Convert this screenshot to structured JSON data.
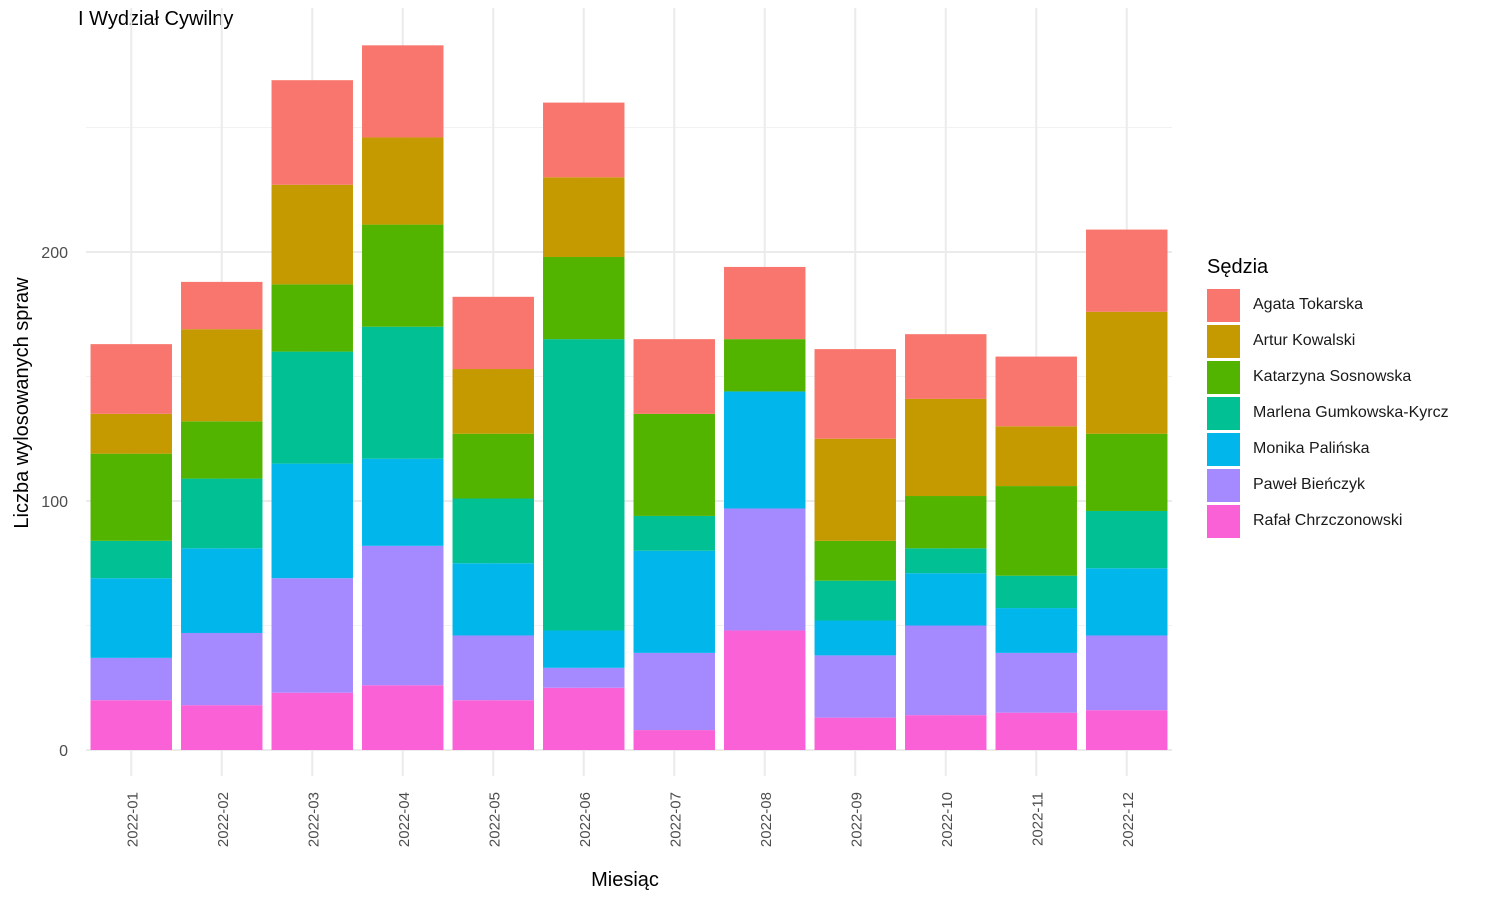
{
  "chart_data": {
    "type": "bar",
    "stacked": true,
    "title": "I Wydział Cywilny",
    "xlabel": "Miesiąc",
    "ylabel": "Liczba wylosowanych spraw",
    "ylim": [
      0,
      283
    ],
    "yticks": [
      0,
      100,
      200
    ],
    "grid": true,
    "legend_title": "Sędzia",
    "legend_position": "right",
    "categories": [
      "2022-01",
      "2022-02",
      "2022-03",
      "2022-04",
      "2022-05",
      "2022-06",
      "2022-07",
      "2022-08",
      "2022-09",
      "2022-10",
      "2022-11",
      "2022-12"
    ],
    "series": [
      {
        "name": "Agata Tokarska",
        "color": "#F8766D",
        "values": [
          28,
          19,
          42,
          37,
          29,
          30,
          30,
          29,
          36,
          26,
          28,
          33
        ]
      },
      {
        "name": "Artur Kowalski",
        "color": "#C49A00",
        "values": [
          16,
          37,
          40,
          35,
          26,
          32,
          0,
          0,
          41,
          39,
          24,
          49
        ]
      },
      {
        "name": "Katarzyna Sosnowska",
        "color": "#53B400",
        "values": [
          35,
          23,
          27,
          41,
          26,
          33,
          41,
          21,
          16,
          21,
          36,
          31
        ]
      },
      {
        "name": "Marlena Gumkowska-Kyrcz",
        "color": "#00C094",
        "values": [
          15,
          28,
          45,
          53,
          26,
          117,
          14,
          0,
          16,
          10,
          13,
          23
        ]
      },
      {
        "name": "Monika Palińska",
        "color": "#00B6EB",
        "values": [
          32,
          34,
          46,
          35,
          29,
          15,
          41,
          47,
          14,
          21,
          18,
          27
        ]
      },
      {
        "name": "Paweł Bieńczyk",
        "color": "#A58AFF",
        "values": [
          17,
          29,
          46,
          56,
          26,
          8,
          31,
          49,
          25,
          36,
          24,
          30
        ]
      },
      {
        "name": "Rafał Chrzczonowski",
        "color": "#FB61D7",
        "values": [
          20,
          18,
          23,
          26,
          20,
          25,
          8,
          48,
          13,
          14,
          15,
          16
        ]
      }
    ]
  }
}
